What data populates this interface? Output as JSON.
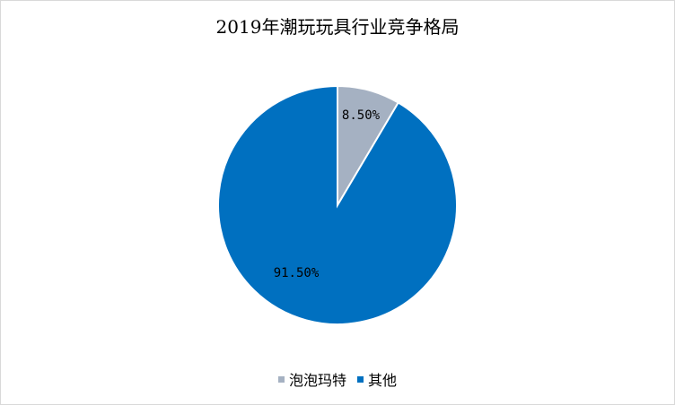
{
  "chart_data": {
    "type": "pie",
    "title": "2019年潮玩玩具行业竞争格局",
    "series": [
      {
        "name": "泡泡玛特",
        "value": 8.5,
        "label": "8.50%",
        "color": "#A5B1C2"
      },
      {
        "name": "其他",
        "value": 91.5,
        "label": "91.50%",
        "color": "#0070C0"
      }
    ],
    "legend_position": "bottom"
  }
}
